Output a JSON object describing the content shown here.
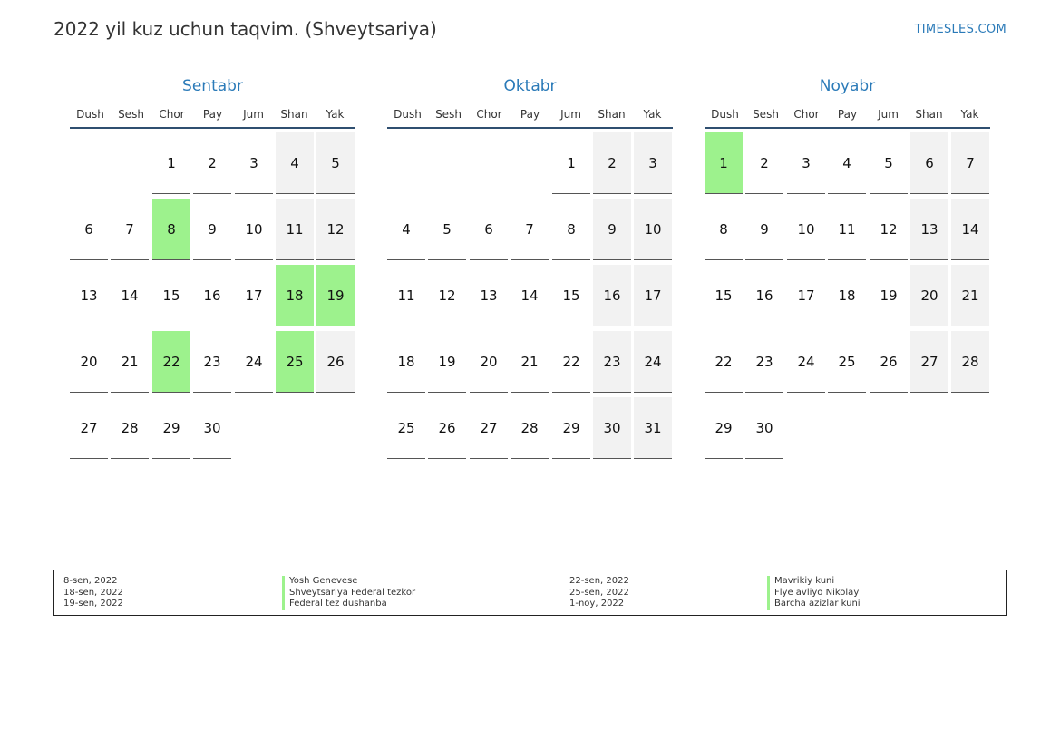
{
  "header": {
    "title": "2022 yil kuz uchun taqvim. (Shveytsariya)",
    "brand": "TIMESLES.COM"
  },
  "colors": {
    "accent": "#2a7ab8",
    "holiday": "#9df28d",
    "weekend": "#f2f2f2"
  },
  "weekdays": [
    "Dush",
    "Sesh",
    "Chor",
    "Pay",
    "Jum",
    "Shan",
    "Yak"
  ],
  "months": [
    {
      "name": "Sentabr",
      "first_weekday": 3,
      "days": 30,
      "holidays": [
        8,
        18,
        19,
        22,
        25
      ]
    },
    {
      "name": "Oktabr",
      "first_weekday": 5,
      "days": 31,
      "holidays": []
    },
    {
      "name": "Noyabr",
      "first_weekday": 1,
      "days": 30,
      "holidays": [
        1
      ]
    }
  ],
  "legend": {
    "left": [
      {
        "date": "8-sen, 2022",
        "name": "Yosh Genevese"
      },
      {
        "date": "18-sen, 2022",
        "name": "Shveytsariya Federal tezkor"
      },
      {
        "date": "19-sen, 2022",
        "name": "Federal tez dushanba"
      }
    ],
    "right": [
      {
        "date": "22-sen, 2022",
        "name": "Mavrikiy kuni"
      },
      {
        "date": "25-sen, 2022",
        "name": "Flye avliyo Nikolay"
      },
      {
        "date": "1-noy, 2022",
        "name": "Barcha azizlar kuni"
      }
    ]
  }
}
